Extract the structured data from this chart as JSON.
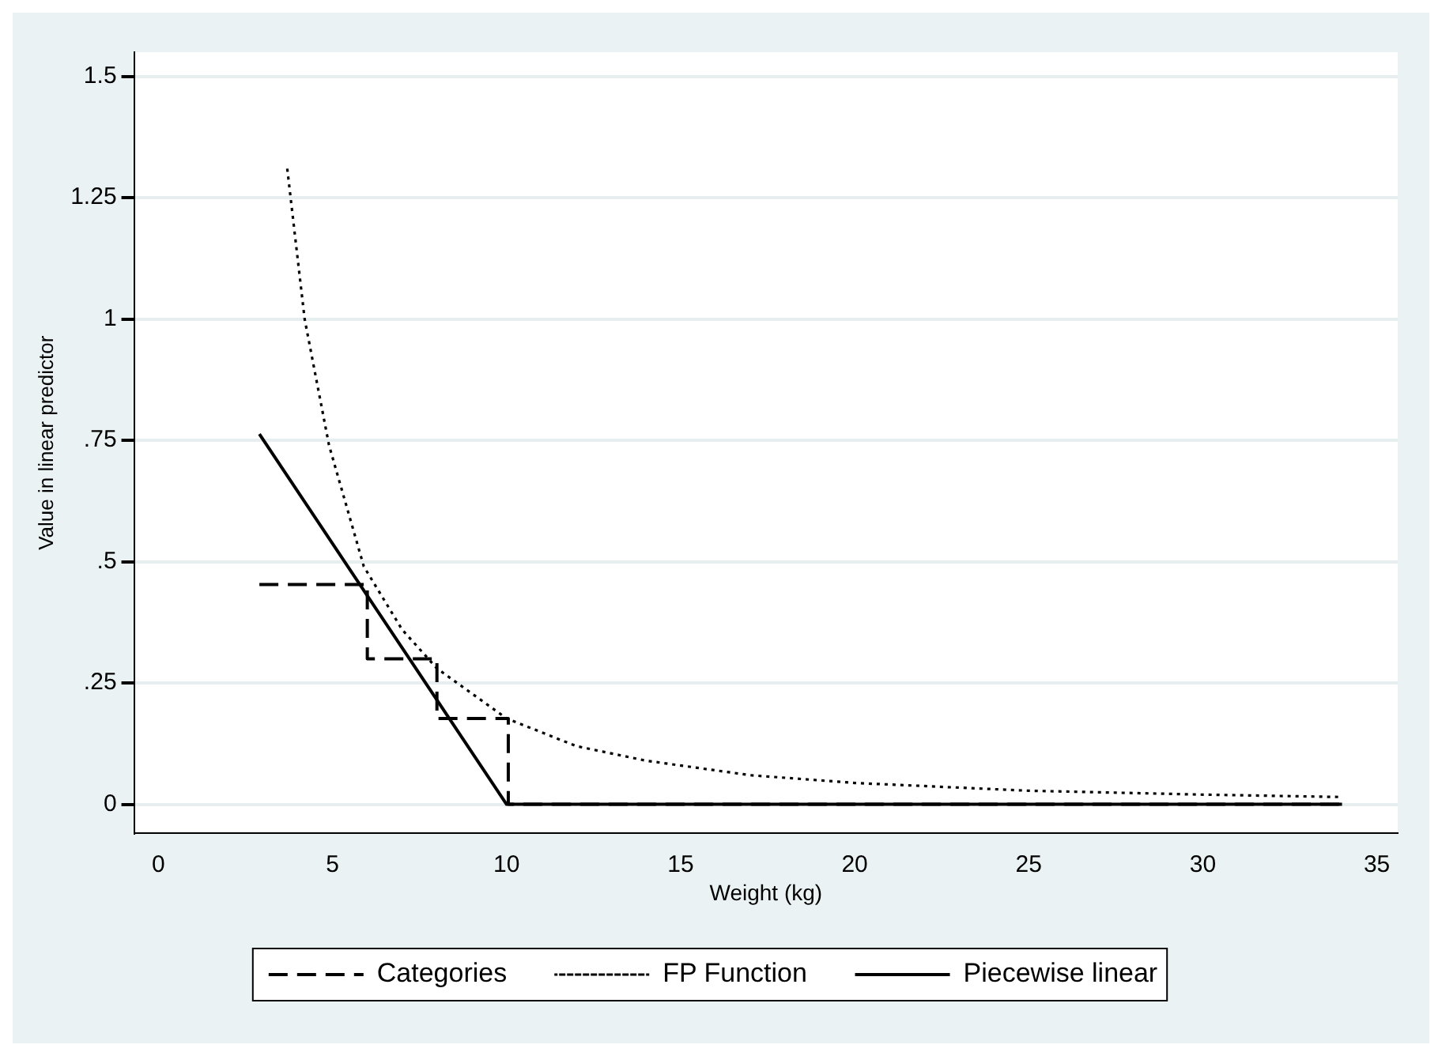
{
  "chart_data": {
    "type": "line",
    "xlabel": "Weight (kg)",
    "ylabel": "Value in linear predictor",
    "xlim": [
      -0.7,
      35.6
    ],
    "xticks": [
      0,
      5,
      10,
      15,
      20,
      25,
      30,
      35
    ],
    "ylim": [
      -0.06,
      1.55
    ],
    "yticks": [
      0,
      {
        "value": 0.25,
        "label": ".25"
      },
      {
        "value": 0.5,
        "label": ".5"
      },
      {
        "value": 0.75,
        "label": ".75"
      },
      1,
      1.25,
      1.5
    ],
    "grid": "y",
    "legend": "bottom",
    "marker": "none",
    "series": [
      {
        "name": "Categories",
        "color": "#000000",
        "line_style": "dashed",
        "x": [
          2.9,
          6.0,
          6.0,
          8.0,
          8.0,
          10.05,
          10.05,
          34
        ],
        "values": [
          0.453,
          0.453,
          0.3,
          0.3,
          0.177,
          0.177,
          0,
          0
        ]
      },
      {
        "name": "FP Function",
        "color": "#000000",
        "line_style": "dotted",
        "x": [
          3.7,
          4.2,
          4.9,
          5.9,
          7,
          8,
          10,
          12,
          14,
          17,
          20,
          25,
          30,
          34
        ],
        "values": [
          1.31,
          1.0,
          0.74,
          0.49,
          0.36,
          0.28,
          0.177,
          0.12,
          0.09,
          0.06,
          0.044,
          0.028,
          0.02,
          0.015
        ]
      },
      {
        "name": "Piecewise linear",
        "color": "#000000",
        "line_style": "solid",
        "x": [
          2.9,
          10,
          34
        ],
        "values": [
          0.763,
          0,
          0
        ]
      }
    ]
  }
}
